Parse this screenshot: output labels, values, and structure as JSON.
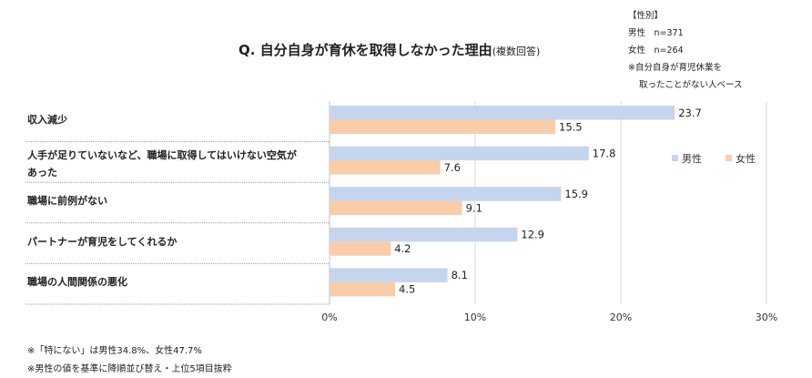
{
  "title": "Q. 自分自身が育休を取得しなかった理由",
  "title_suffix": "(複数回答)",
  "note_box": {
    "heading": "【性別】",
    "male": "男性　n=371",
    "female": "女性　n=264",
    "base_line1": "※自分自身が育児休業を",
    "base_line2": "取ったことがない人ベース"
  },
  "footnotes": [
    "※「特にない」は男性34.8%、女性47.7%",
    "※男性の値を基準に降順並び替え・上位5項目抜粋"
  ],
  "colors": {
    "male": "#c5d5ee",
    "female": "#f9cdaa"
  },
  "chart_data": {
    "type": "bar",
    "orientation": "horizontal",
    "title": "Q. 自分自身が育休を取得しなかった理由(複数回答)",
    "categories": [
      "収入減少",
      "人手が足りていないなど、職場に取得してはいけない空気があった",
      "職場に前例がない",
      "パートナーが育児をしてくれるか",
      "職場の人間関係の悪化"
    ],
    "series": [
      {
        "name": "男性",
        "values": [
          23.7,
          17.8,
          15.9,
          12.9,
          8.1
        ]
      },
      {
        "name": "女性",
        "values": [
          15.5,
          7.6,
          9.1,
          4.2,
          4.5
        ]
      }
    ],
    "xlim": [
      0,
      30
    ],
    "xticks": [
      "0%",
      "10%",
      "20%",
      "30%"
    ],
    "legend_position": "right"
  }
}
